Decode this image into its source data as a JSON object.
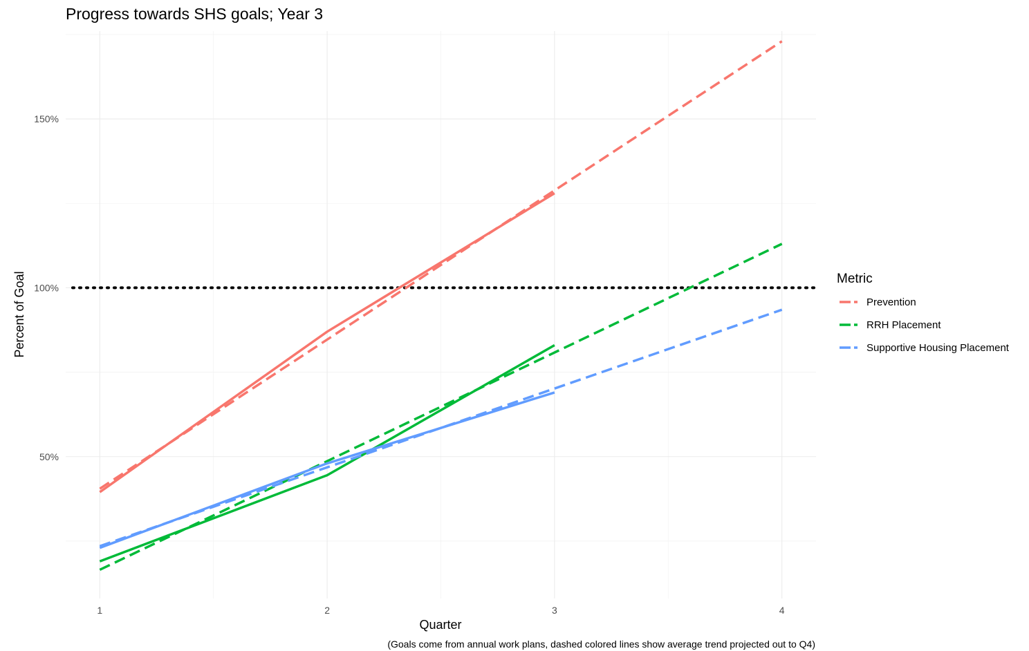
{
  "chart_data": {
    "type": "line",
    "title": "Progress towards SHS goals; Year 3",
    "xlabel": "Quarter",
    "ylabel": "Percent of Goal",
    "caption": "(Goals come from annual work plans, dashed colored lines show average trend projected out to Q4)",
    "xlim": [
      0.85,
      4.15
    ],
    "ylim": [
      8,
      176
    ],
    "x_ticks": [
      1,
      2,
      3,
      4
    ],
    "x_tick_labels": [
      "1",
      "2",
      "3",
      "4"
    ],
    "y_ticks": [
      50,
      100,
      150
    ],
    "y_tick_labels": [
      "50%",
      "100%",
      "150%"
    ],
    "reference_line": {
      "y": 100,
      "style": "dotted",
      "color": "#000000"
    },
    "legend": {
      "title": "Metric",
      "position": "right"
    },
    "grid": true,
    "series": [
      {
        "name": "Prevention",
        "color": "#F8766D",
        "actual": {
          "x": [
            1,
            2,
            3
          ],
          "y": [
            39.5,
            87,
            128
          ]
        },
        "trend": {
          "x": [
            1,
            4
          ],
          "y": [
            40.5,
            173
          ]
        }
      },
      {
        "name": "RRH Placement",
        "color": "#00BA38",
        "actual": {
          "x": [
            1,
            2,
            3
          ],
          "y": [
            19,
            44.5,
            83
          ]
        },
        "trend": {
          "x": [
            1,
            4
          ],
          "y": [
            16.5,
            113
          ]
        }
      },
      {
        "name": "Supportive Housing Placement",
        "color": "#619CFF",
        "actual": {
          "x": [
            1,
            2,
            3
          ],
          "y": [
            23,
            48,
            69
          ]
        },
        "trend": {
          "x": [
            1,
            4
          ],
          "y": [
            23.5,
            93.5
          ]
        }
      }
    ]
  }
}
